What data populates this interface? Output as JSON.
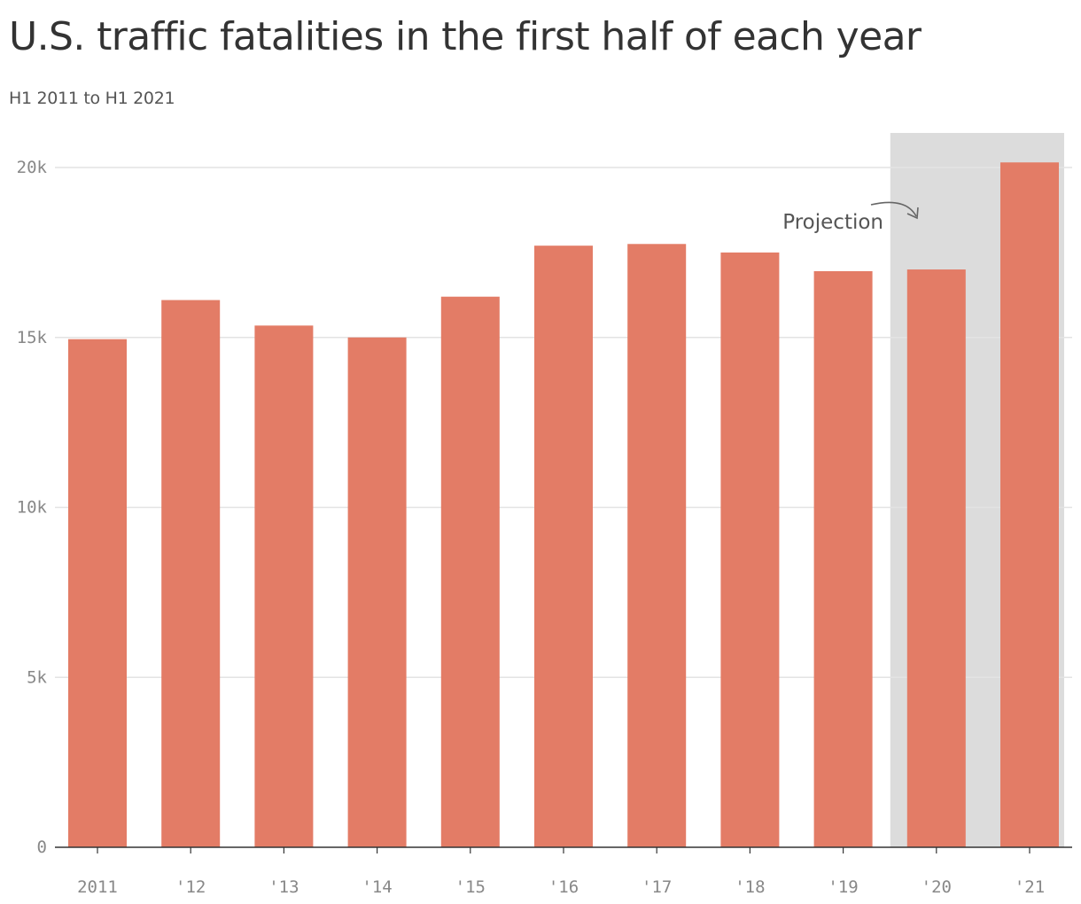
{
  "chart_data": {
    "type": "bar",
    "title": "U.S. traffic fatalities in the first half of each year",
    "subtitle": "H1 2011 to H1 2021",
    "categories": [
      "2011",
      "'12",
      "'13",
      "'14",
      "'15",
      "'16",
      "'17",
      "'18",
      "'19",
      "'20",
      "'21"
    ],
    "values": [
      14950,
      16100,
      15350,
      15000,
      16200,
      17700,
      17750,
      17500,
      16950,
      17000,
      20150
    ],
    "ylim": [
      0,
      21000
    ],
    "yticks": [
      0,
      5000,
      10000,
      15000,
      20000
    ],
    "ytick_labels": [
      "0",
      "5k",
      "10k",
      "15k",
      "20k"
    ],
    "grid": true,
    "bar_color": "#e37c66",
    "highlight": {
      "categories": [
        "'20",
        "'21"
      ],
      "color": "#dcdcdc",
      "label": "Projection"
    }
  }
}
